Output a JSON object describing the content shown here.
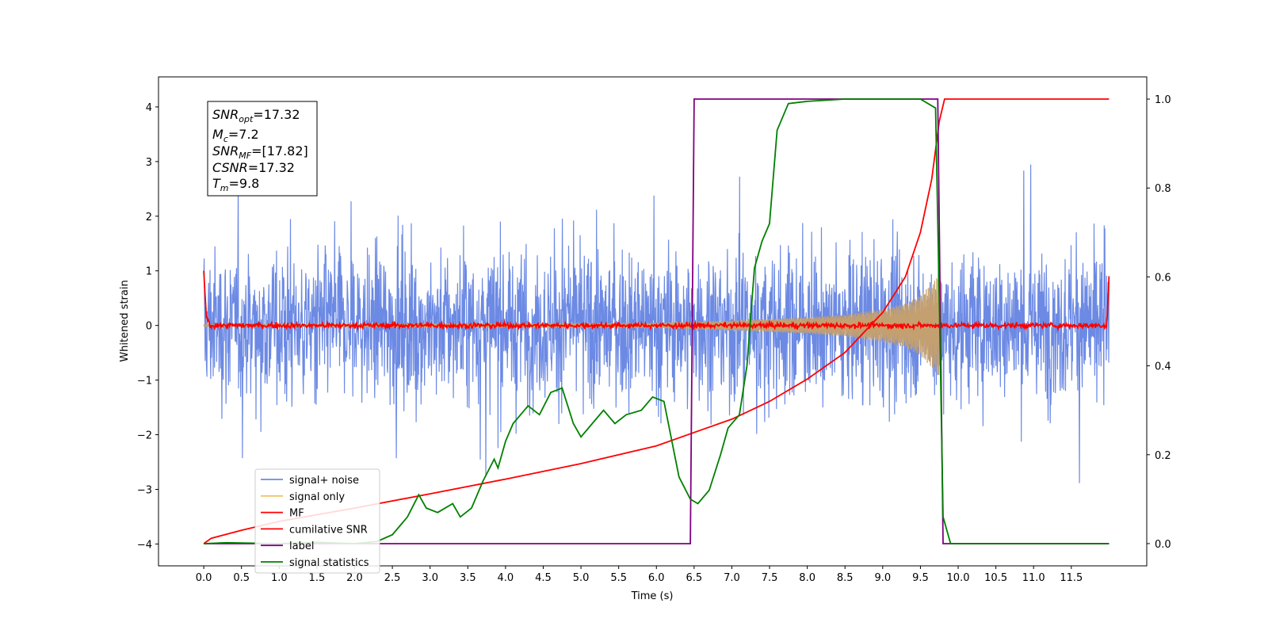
{
  "chart_data": {
    "type": "line",
    "xlabel": "Time (s)",
    "ylabel": "Whitened strain",
    "xlim": [
      -0.6,
      12.5
    ],
    "ylim": [
      -4.4,
      4.55
    ],
    "y2lim": [
      -0.05,
      1.05
    ],
    "xticks": [
      "0.0",
      "0.5",
      "1.0",
      "1.5",
      "2.0",
      "2.5",
      "3.0",
      "3.5",
      "4.0",
      "4.5",
      "5.0",
      "5.5",
      "6.0",
      "6.5",
      "7.0",
      "7.5",
      "8.0",
      "8.5",
      "9.0",
      "9.5",
      "10.0",
      "10.5",
      "11.0",
      "11.5"
    ],
    "yticks": [
      "−4",
      "−3",
      "−2",
      "−1",
      "0",
      "1",
      "2",
      "3",
      "4"
    ],
    "y2ticks": [
      "0.0",
      "0.2",
      "0.4",
      "0.6",
      "0.8",
      "1.0"
    ],
    "grid": false,
    "legend_position": "bottom-left",
    "info_box": {
      "snr_opt": {
        "sym": "SNR",
        "sub": "opt",
        "val": "=17.32"
      },
      "mc": {
        "sym": "M",
        "sub": "c",
        "val": "=7.2"
      },
      "snr_mf": {
        "sym": "SNR",
        "sub": "MF",
        "val": "=[17.82]"
      },
      "csnr": {
        "sym": "CSNR",
        "sub": "",
        "val": "=17.32"
      },
      "tm": {
        "sym": "T",
        "sub": "m",
        "val": "=9.8"
      }
    },
    "series": [
      {
        "name": "signal+ noise",
        "color": "#6c8ae4",
        "axis": "left",
        "description_values": "noise band approx ±1.6 with spikes to ±3.1, t 0–12"
      },
      {
        "name": "signal only",
        "color": "#f0c26a",
        "axis": "left",
        "envelope": {
          "t": [
            0,
            6,
            7,
            8,
            8.5,
            9,
            9.3,
            9.5,
            9.7,
            9.78
          ],
          "amp": [
            0.02,
            0.05,
            0.09,
            0.15,
            0.2,
            0.3,
            0.4,
            0.55,
            0.85,
            1.0
          ]
        }
      },
      {
        "name": "MF",
        "color": "#ff0000",
        "axis": "left",
        "values_desc": "near 0 with small fluctuations; 1.0 at t=0 and 0.9 at t=12"
      },
      {
        "name": "cumilative SNR",
        "color": "#ff0000",
        "axis": "right",
        "x": [
          0,
          0.1,
          0.5,
          1,
          2,
          3,
          4,
          5,
          6,
          6.5,
          7,
          7.5,
          8,
          8.5,
          9,
          9.3,
          9.5,
          9.65,
          9.75,
          9.82,
          12
        ],
        "y": [
          0,
          0.012,
          0.03,
          0.05,
          0.08,
          0.112,
          0.145,
          0.18,
          0.22,
          0.25,
          0.28,
          0.32,
          0.37,
          0.43,
          0.52,
          0.6,
          0.7,
          0.82,
          0.95,
          1.0,
          1.0
        ]
      },
      {
        "name": "label",
        "color": "#800080",
        "axis": "right",
        "x": [
          0,
          6.45,
          6.5,
          9.73,
          9.8,
          12
        ],
        "y": [
          0,
          0,
          1,
          1,
          0,
          0
        ]
      },
      {
        "name": "signal statistics",
        "color": "#008000",
        "axis": "right",
        "x": [
          0,
          0.3,
          1,
          1.5,
          2,
          2.3,
          2.5,
          2.7,
          2.85,
          2.95,
          3.1,
          3.3,
          3.4,
          3.55,
          3.7,
          3.85,
          3.9,
          4.0,
          4.1,
          4.3,
          4.45,
          4.6,
          4.75,
          4.9,
          5.0,
          5.15,
          5.3,
          5.45,
          5.6,
          5.8,
          5.95,
          6.1,
          6.3,
          6.45,
          6.55,
          6.7,
          6.85,
          6.95,
          7.1,
          7.2,
          7.3,
          7.4,
          7.5,
          7.6,
          7.75,
          8.0,
          8.5,
          9.0,
          9.5,
          9.7,
          9.75,
          9.8,
          9.9,
          12
        ],
        "y": [
          0,
          0.002,
          0,
          0.003,
          0,
          0.005,
          0.02,
          0.06,
          0.11,
          0.08,
          0.07,
          0.09,
          0.06,
          0.08,
          0.14,
          0.19,
          0.17,
          0.23,
          0.27,
          0.31,
          0.29,
          0.34,
          0.35,
          0.27,
          0.24,
          0.27,
          0.3,
          0.27,
          0.29,
          0.3,
          0.33,
          0.32,
          0.15,
          0.1,
          0.09,
          0.12,
          0.2,
          0.26,
          0.29,
          0.4,
          0.62,
          0.68,
          0.72,
          0.93,
          0.99,
          0.995,
          1.0,
          1.0,
          1.0,
          0.98,
          0.55,
          0.06,
          0.0,
          0.0
        ]
      }
    ]
  }
}
